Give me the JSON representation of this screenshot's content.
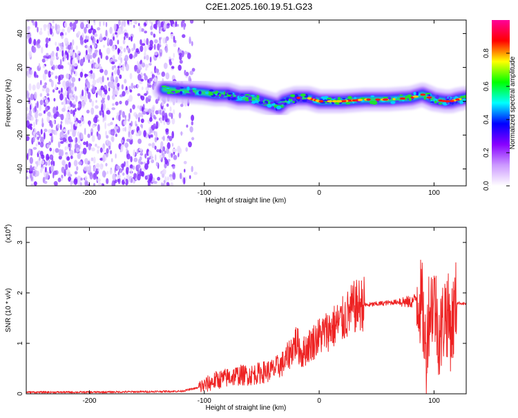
{
  "title": "C2E1.2025.160.19.51.G23",
  "chart_data": [
    {
      "type": "heatmap",
      "xlabel": "Height of straight line (km)",
      "ylabel": "Frequency (Hz)",
      "xlim": [
        -255,
        128
      ],
      "ylim": [
        -50,
        48
      ],
      "xticks": [
        -200,
        -100,
        0,
        100
      ],
      "xtick_labels": [
        "-200",
        "-100",
        "0",
        "100"
      ],
      "yticks": [
        -40,
        -20,
        0,
        20,
        40
      ],
      "ytick_labels": [
        "-40",
        "-20",
        "0",
        "20",
        "40"
      ],
      "colorbar": {
        "label": "Normalized spectral amplitude",
        "range": [
          0,
          1
        ],
        "ticks": [
          0.0,
          0.2,
          0.4,
          0.6,
          0.8
        ],
        "tick_labels": [
          "0.0",
          "0.2",
          "0.4",
          "0.6",
          "0.8"
        ],
        "colors": [
          "#ffffff",
          "#cc99ff",
          "#8800ff",
          "#0000ff",
          "#00ffff",
          "#00ff00",
          "#ffff00",
          "#ff0000",
          "#ff0099"
        ]
      },
      "noise_region_x": [
        -255,
        -118
      ],
      "ridge": {
        "x": [
          -135,
          -120,
          -100,
          -90,
          -80,
          -70,
          -60,
          -50,
          -40,
          -35,
          -30,
          -20,
          -10,
          0,
          10,
          20,
          40,
          60,
          80,
          90,
          100,
          110,
          115,
          120,
          128
        ],
        "frequency": [
          7,
          6,
          5,
          4,
          4,
          2,
          2,
          0,
          -2,
          -3,
          0,
          2,
          2,
          0,
          0,
          0,
          1,
          1,
          2,
          4,
          1,
          0,
          0,
          1,
          2
        ]
      }
    },
    {
      "type": "line",
      "xlabel": "Height of straight line (km)",
      "ylabel": "SNR (10 * v/v)",
      "scale_label": "(x10",
      "scale_exponent": "4",
      "xlim": [
        -255,
        128
      ],
      "ylim": [
        0,
        3.3
      ],
      "xticks": [
        -200,
        -100,
        0,
        100
      ],
      "xtick_labels": [
        "-200",
        "-100",
        "0",
        "100"
      ],
      "yticks": [
        0,
        1,
        2,
        3
      ],
      "ytick_labels": [
        "0",
        "1",
        "2",
        "3"
      ],
      "series": [
        {
          "color": "#ee2222",
          "x": [
            -255,
            -200,
            -150,
            -120,
            -105,
            -100,
            -90,
            -80,
            -70,
            -60,
            -50,
            -40,
            -30,
            -25,
            -20,
            -15,
            -10,
            0,
            10,
            20,
            30,
            40,
            60,
            70,
            80,
            85,
            90,
            93,
            95,
            100,
            105,
            110,
            115,
            120,
            128
          ],
          "y": [
            0.03,
            0.03,
            0.04,
            0.05,
            0.12,
            0.15,
            0.25,
            0.3,
            0.35,
            0.35,
            0.4,
            0.45,
            0.6,
            0.8,
            1.0,
            0.75,
            0.9,
            1.1,
            1.25,
            1.4,
            1.65,
            1.75,
            1.8,
            1.82,
            1.8,
            1.9,
            1.6,
            0.6,
            1.5,
            1.8,
            1.0,
            1.6,
            1.2,
            1.8,
            1.78
          ]
        }
      ]
    }
  ]
}
